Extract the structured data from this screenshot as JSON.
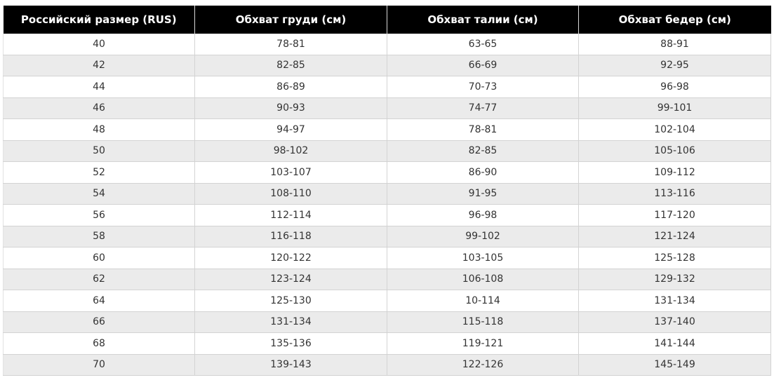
{
  "size_table": {
    "headers": [
      "Российский размер (RUS)",
      "Обхват груди (см)",
      "Обхват талии (см)",
      "Обхват бедер (см)"
    ],
    "rows": [
      [
        "40",
        "78-81",
        "63-65",
        "88-91"
      ],
      [
        "42",
        "82-85",
        "66-69",
        "92-95"
      ],
      [
        "44",
        "86-89",
        "70-73",
        "96-98"
      ],
      [
        "46",
        "90-93",
        "74-77",
        "99-101"
      ],
      [
        "48",
        "94-97",
        "78-81",
        "102-104"
      ],
      [
        "50",
        "98-102",
        "82-85",
        "105-106"
      ],
      [
        "52",
        "103-107",
        "86-90",
        "109-112"
      ],
      [
        "54",
        "108-110",
        "91-95",
        "113-116"
      ],
      [
        "56",
        "112-114",
        "96-98",
        "117-120"
      ],
      [
        "58",
        "116-118",
        "99-102",
        "121-124"
      ],
      [
        "60",
        "120-122",
        "103-105",
        "125-128"
      ],
      [
        "62",
        "123-124",
        "106-108",
        "129-132"
      ],
      [
        "64",
        "125-130",
        "10-114",
        "131-134"
      ],
      [
        "66",
        "131-134",
        "115-118",
        "137-140"
      ],
      [
        "68",
        "135-136",
        "119-121",
        "141-144"
      ],
      [
        "70",
        "139-143",
        "122-126",
        "145-149"
      ]
    ]
  },
  "colors": {
    "header_bg": "#000000",
    "header_text": "#ffffff",
    "row_even_bg": "#ebebeb",
    "row_odd_bg": "#ffffff",
    "cell_text": "#333333"
  }
}
